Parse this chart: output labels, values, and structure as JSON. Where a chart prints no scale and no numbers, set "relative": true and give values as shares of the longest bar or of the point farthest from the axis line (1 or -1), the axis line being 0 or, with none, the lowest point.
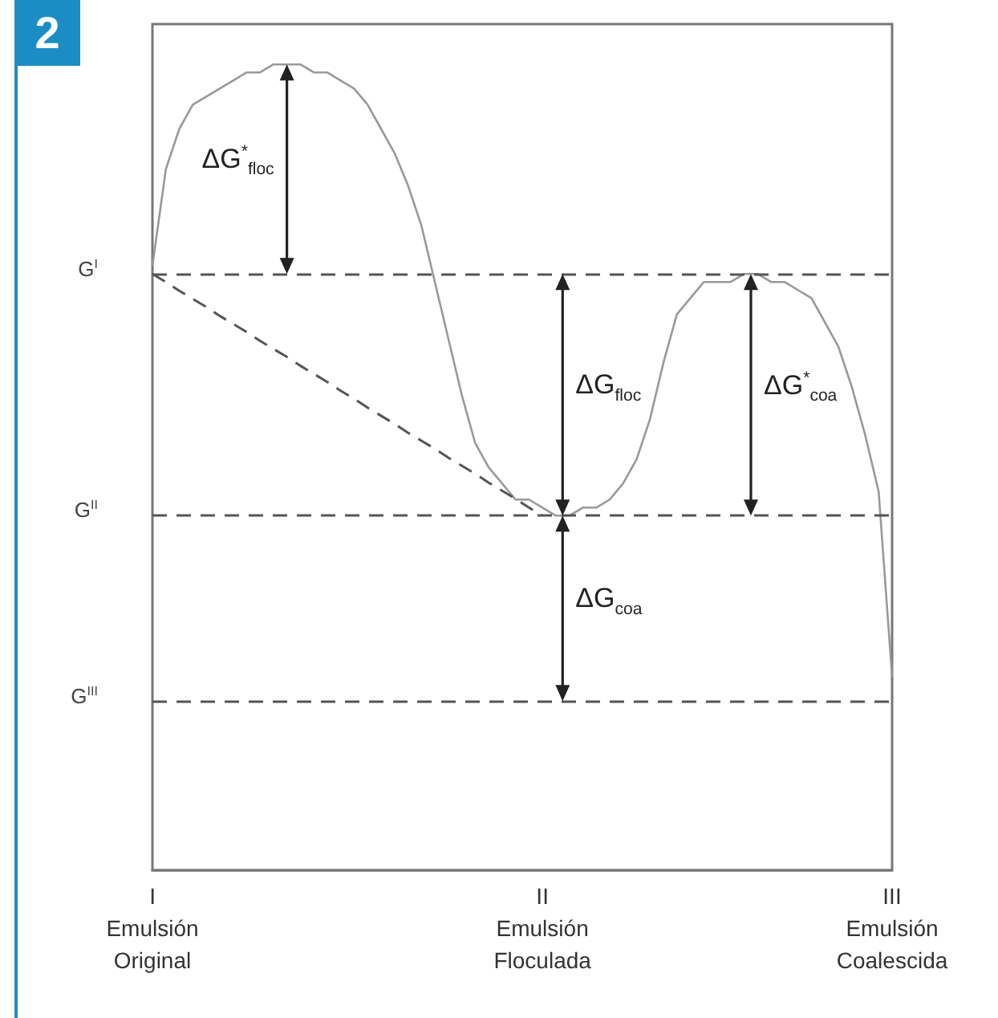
{
  "chart_data": {
    "type": "line",
    "relative": true,
    "marker": "none",
    "categories": [
      "I\nEmulsión\nOriginal",
      null,
      null,
      null,
      null,
      null,
      null,
      null,
      null,
      null,
      null,
      null,
      null,
      null,
      null,
      null,
      null,
      null,
      null,
      null,
      null,
      null,
      null,
      null,
      null,
      null,
      null,
      null,
      null,
      "II\nEmulsión\nFloculada",
      null,
      null,
      null,
      null,
      null,
      null,
      null,
      null,
      null,
      null,
      null,
      null,
      null,
      null,
      null,
      null,
      null,
      null,
      null,
      null,
      null,
      null,
      null,
      null,
      null,
      "III\nEmulsión\nCoalescida"
    ],
    "series": [
      {
        "color": "#999999",
        "values": [
          0.75,
          0.87,
          0.92,
          0.95,
          0.96,
          0.97,
          0.98,
          0.99,
          0.99,
          1,
          1,
          1,
          0.99,
          0.99,
          0.98,
          0.97,
          0.95,
          0.92,
          0.89,
          0.85,
          0.8,
          0.73,
          0.66,
          0.59,
          0.53,
          0.5,
          0.48,
          0.46,
          0.46,
          0.45,
          0.44,
          0.44,
          0.45,
          0.45,
          0.46,
          0.48,
          0.51,
          0.56,
          0.63,
          0.69,
          0.71,
          0.73,
          0.73,
          0.73,
          0.74,
          0.74,
          0.73,
          0.73,
          0.72,
          0.71,
          0.68,
          0.65,
          0.6,
          0.54,
          0.47,
          0.24
        ]
      },
      {
        "color": "#555555",
        "line_style": "dashed",
        "values": [
          0.74,
          0.73,
          0.719,
          0.709,
          0.699,
          0.688,
          0.678,
          0.668,
          0.657,
          0.647,
          0.637,
          0.626,
          0.616,
          0.606,
          0.595,
          0.585,
          0.574,
          0.564,
          0.554,
          0.543,
          0.533,
          0.523,
          0.512,
          0.502,
          0.492,
          0.481,
          0.471,
          0.461,
          0.45,
          0.44,
          null,
          null,
          null,
          null,
          null,
          null,
          null,
          null,
          null,
          null,
          null,
          null,
          null,
          null,
          null,
          null,
          null,
          null,
          null,
          null,
          null,
          null,
          null,
          null,
          null,
          null
        ]
      }
    ],
    "ref_lines": [
      {
        "axis": "y",
        "value": 0.74,
        "label": "G$^{I}$",
        "color": "#555555",
        "line_style": "dashed"
      },
      {
        "axis": "y",
        "value": 0.44,
        "label": "G$^{II}$",
        "color": "#555555",
        "line_style": "dashed"
      },
      {
        "axis": "y",
        "value": 0.21,
        "label": "G$^{III}$",
        "color": "#555555",
        "line_style": "dashed"
      }
    ],
    "annotations": [
      "2",
      "ΔG$^{*}$$_{floc}$",
      "ΔG$_{floc}$",
      "ΔG$_{coa}$",
      "ΔG$^{*}$$_{coa}$"
    ]
  }
}
